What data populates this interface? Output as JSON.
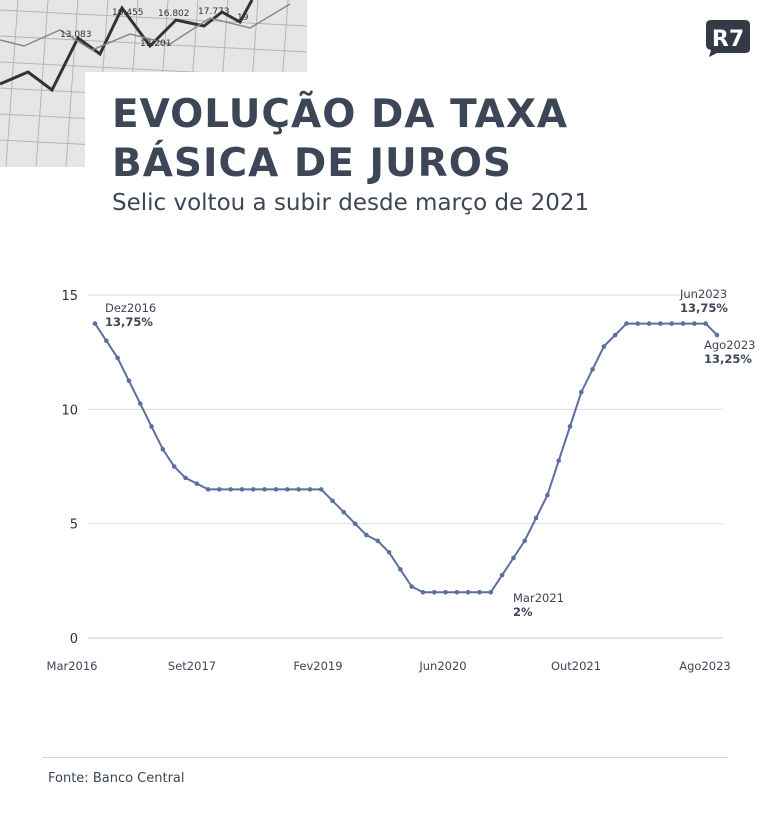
{
  "header": {
    "title_line1": "EVOLUÇÃO DA TAXA",
    "title_line2": "BÁSICA DE JUROS",
    "subtitle": "Selic voltou a subir desde março de 2021",
    "logo_text": "R7"
  },
  "background_photo": {
    "labels": [
      "16.455",
      "16.802",
      "13.083",
      "13.201",
      "17.773",
      "19"
    ]
  },
  "colors": {
    "line": "#5c6f9d",
    "text": "#3d4656",
    "grid": "#dddddd",
    "logo": "#333a45"
  },
  "chart_data": {
    "type": "line",
    "title": "",
    "xlabel": "",
    "ylabel": "",
    "ylim": [
      0,
      15
    ],
    "yticks": [
      0,
      5,
      10,
      15
    ],
    "xticks": [
      "Mar2016",
      "Set2017",
      "Fev2019",
      "Jun2020",
      "Out2021",
      "Ago2023"
    ],
    "grid": true,
    "series": [
      {
        "values": [
          13.75,
          13.0,
          12.25,
          11.25,
          10.25,
          9.25,
          8.25,
          7.5,
          7.0,
          6.75,
          6.5,
          6.5,
          6.5,
          6.5,
          6.5,
          6.5,
          6.5,
          6.5,
          6.5,
          6.5,
          6.5,
          6.0,
          5.5,
          5.0,
          4.5,
          4.25,
          3.75,
          3.0,
          2.25,
          2.0,
          2.0,
          2.0,
          2.0,
          2.0,
          2.0,
          2.0,
          2.75,
          3.5,
          4.25,
          5.25,
          6.25,
          7.75,
          9.25,
          10.75,
          11.75,
          12.75,
          13.25,
          13.75,
          13.75,
          13.75,
          13.75,
          13.75,
          13.75,
          13.75,
          13.75,
          13.25
        ]
      }
    ],
    "annotations": [
      {
        "period": "Dez2016",
        "value": "13,75%",
        "index": 0
      },
      {
        "period": "Mar2021",
        "value": "2%",
        "index": 35
      },
      {
        "period": "Jun2023",
        "value": "13,75%",
        "index": 54
      },
      {
        "period": "Ago2023",
        "value": "13,25%",
        "index": 55
      }
    ]
  },
  "source": "Fonte: Banco Central"
}
